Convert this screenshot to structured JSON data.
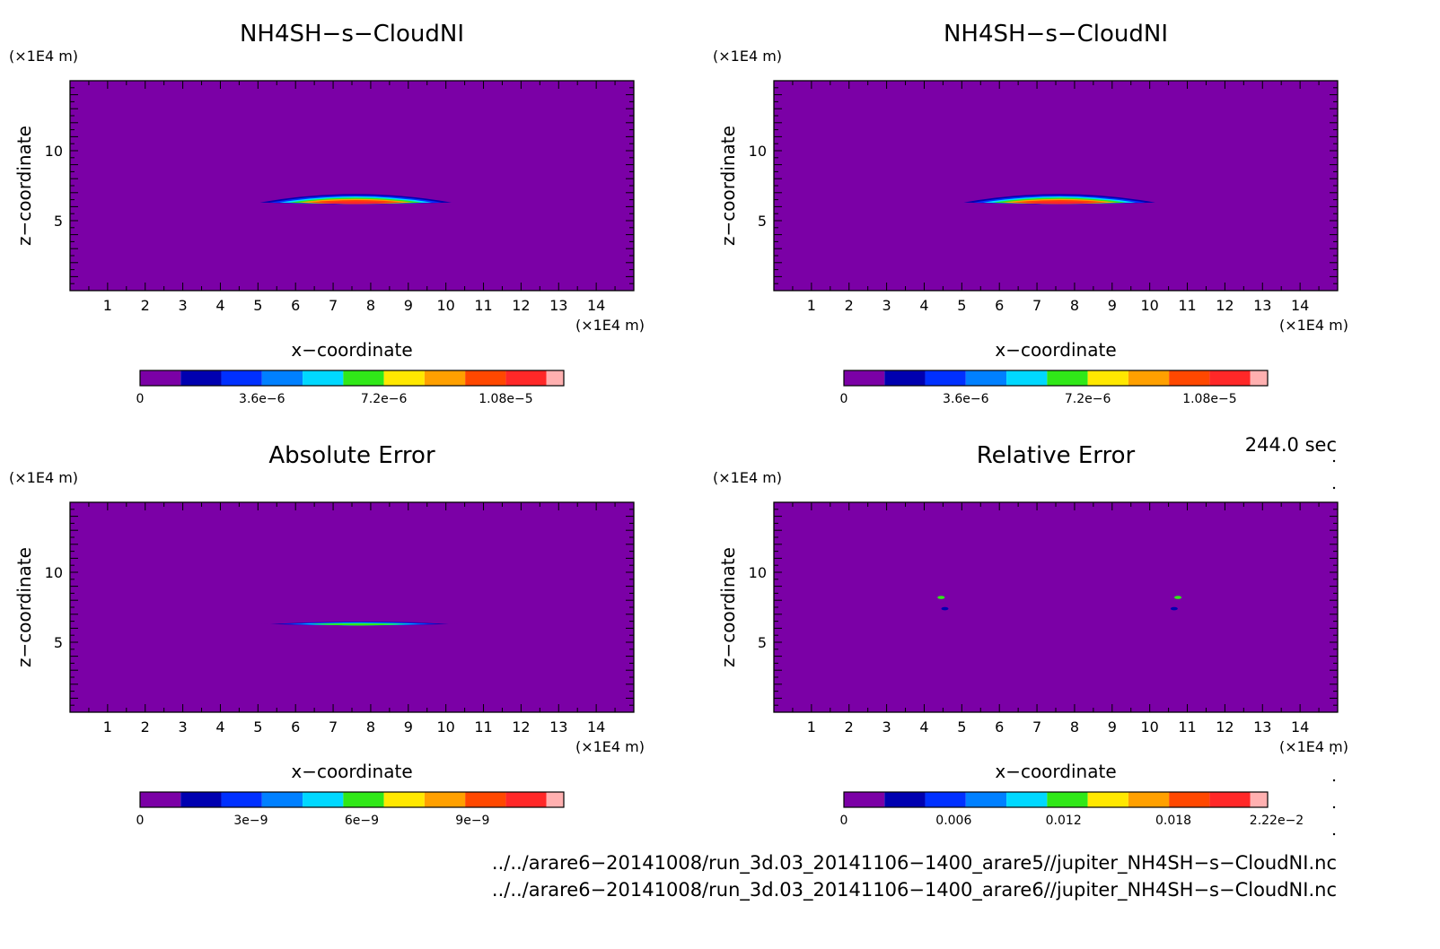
{
  "palette": [
    "#7b00a6",
    "#0000b0",
    "#0030ff",
    "#0080ff",
    "#00d8ff",
    "#30e818",
    "#ffe800",
    "#ffa000",
    "#ff4800",
    "#ff2828",
    "#ffb0b0"
  ],
  "panels": [
    {
      "title": "NH4SH−s−CloudNI",
      "z_unit": "(×1E4 m)",
      "x_unit": "(×1E4 m)",
      "xlabel": "x−coordinate",
      "ylabel": "z−coordinate",
      "x_ticks": [
        "1",
        "2",
        "3",
        "4",
        "5",
        "6",
        "7",
        "8",
        "9",
        "10",
        "11",
        "12",
        "13",
        "14"
      ],
      "y_ticks": [
        "10",
        "5"
      ],
      "cb_ticks": [
        "0",
        "3.6e−6",
        "7.2e−6",
        "1.08e−5"
      ]
    },
    {
      "title": "NH4SH−s−CloudNI",
      "z_unit": "(×1E4 m)",
      "x_unit": "(×1E4 m)",
      "xlabel": "x−coordinate",
      "ylabel": "z−coordinate",
      "x_ticks": [
        "1",
        "2",
        "3",
        "4",
        "5",
        "6",
        "7",
        "8",
        "9",
        "10",
        "11",
        "12",
        "13",
        "14"
      ],
      "y_ticks": [
        "10",
        "5"
      ],
      "cb_ticks": [
        "0",
        "3.6e−6",
        "7.2e−6",
        "1.08e−5"
      ]
    },
    {
      "title": "Absolute Error",
      "z_unit": "(×1E4 m)",
      "x_unit": "(×1E4 m)",
      "xlabel": "x−coordinate",
      "ylabel": "z−coordinate",
      "x_ticks": [
        "1",
        "2",
        "3",
        "4",
        "5",
        "6",
        "7",
        "8",
        "9",
        "10",
        "11",
        "12",
        "13",
        "14"
      ],
      "y_ticks": [
        "10",
        "5"
      ],
      "cb_ticks": [
        "0",
        "3e−9",
        "6e−9",
        "9e−9"
      ]
    },
    {
      "title": "Relative Error",
      "z_unit": "(×1E4 m)",
      "x_unit": "(×1E4 m)",
      "xlabel": "x−coordinate",
      "ylabel": "z−coordinate",
      "x_ticks": [
        "1",
        "2",
        "3",
        "4",
        "5",
        "6",
        "7",
        "8",
        "9",
        "10",
        "11",
        "12",
        "13",
        "14"
      ],
      "y_ticks": [
        "10",
        "5"
      ],
      "cb_ticks": [
        "0",
        "0.006",
        "0.012",
        "0.018",
        "2.22e−2"
      ]
    }
  ],
  "timestamp": "244.0 sec",
  "files": [
    "../../arare6−20141008/run_3d.03_20141106−1400_arare5//jupiter_NH4SH−s−CloudNI.nc",
    "../../arare6−20141008/run_3d.03_20141106−1400_arare6//jupiter_NH4SH−s−CloudNI.nc"
  ],
  "chart_data": [
    {
      "type": "heatmap",
      "title": "NH4SH−s−CloudNI",
      "xlabel": "x−coordinate",
      "ylabel": "z−coordinate",
      "xlim": [
        0,
        15
      ],
      "ylim": [
        0,
        15
      ],
      "colorbar": {
        "min": 0,
        "max": 1.2e-05,
        "levels": 11,
        "ticks": [
          0,
          3.6e-06,
          7.2e-06,
          1.08e-05
        ]
      },
      "features": [
        {
          "kind": "cloud-layer",
          "x_range": [
            5.0,
            10.2
          ],
          "z_center": 6.3,
          "z_thickness": 0.6,
          "peak": 1.1e-05
        }
      ]
    },
    {
      "type": "heatmap",
      "title": "NH4SH−s−CloudNI",
      "xlabel": "x−coordinate",
      "ylabel": "z−coordinate",
      "xlim": [
        0,
        15
      ],
      "ylim": [
        0,
        15
      ],
      "colorbar": {
        "min": 0,
        "max": 1.2e-05,
        "levels": 11,
        "ticks": [
          0,
          3.6e-06,
          7.2e-06,
          1.08e-05
        ]
      },
      "features": [
        {
          "kind": "cloud-layer",
          "x_range": [
            5.0,
            10.2
          ],
          "z_center": 6.3,
          "z_thickness": 0.6,
          "peak": 1.1e-05
        }
      ]
    },
    {
      "type": "heatmap",
      "title": "Absolute Error",
      "xlabel": "x−coordinate",
      "ylabel": "z−coordinate",
      "xlim": [
        0,
        15
      ],
      "ylim": [
        0,
        15
      ],
      "colorbar": {
        "min": 0,
        "max": 1.1e-08,
        "levels": 11,
        "ticks": [
          0,
          3e-09,
          6e-09,
          9e-09
        ]
      },
      "features": [
        {
          "kind": "cloud-layer",
          "x_range": [
            5.0,
            10.4
          ],
          "z_center": 6.3,
          "z_thickness": 0.2,
          "peak": 6e-09
        }
      ]
    },
    {
      "type": "heatmap",
      "title": "Relative Error",
      "xlabel": "x−coordinate",
      "ylabel": "z−coordinate",
      "xlim": [
        0,
        15
      ],
      "ylim": [
        0,
        15
      ],
      "colorbar": {
        "min": 0,
        "max": 0.0222,
        "levels": 11,
        "ticks": [
          0,
          0.006,
          0.012,
          0.018,
          0.0222
        ]
      },
      "features": [
        {
          "kind": "spot",
          "x": 4.45,
          "z": 8.2,
          "value": 0.012
        },
        {
          "kind": "spot",
          "x": 4.55,
          "z": 7.4,
          "value": 0.004
        },
        {
          "kind": "spot",
          "x": 10.75,
          "z": 8.2,
          "value": 0.012
        },
        {
          "kind": "spot",
          "x": 10.65,
          "z": 7.4,
          "value": 0.004
        }
      ]
    }
  ]
}
